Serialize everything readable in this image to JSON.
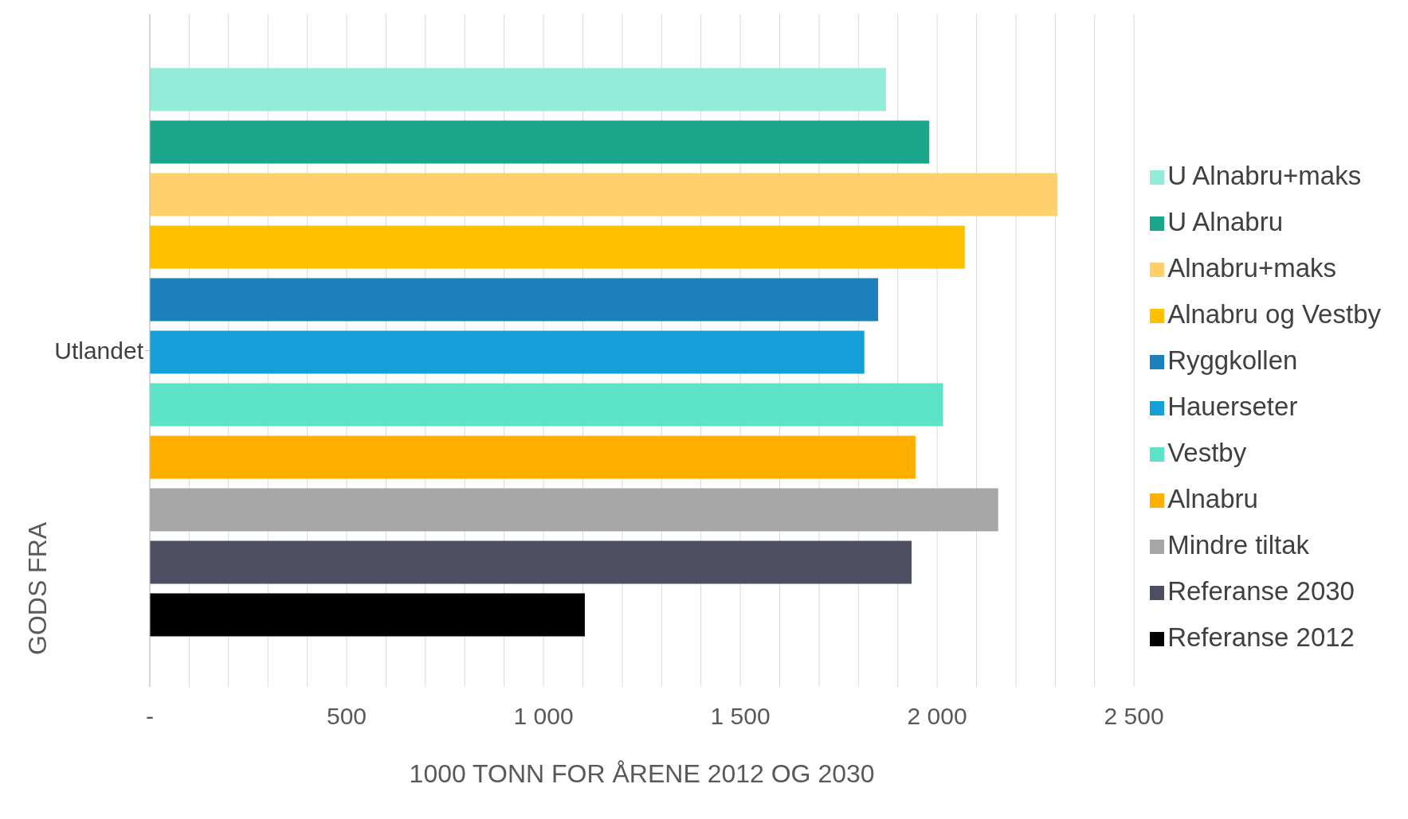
{
  "chart_data": {
    "type": "bar",
    "orientation": "horizontal",
    "xlabel": "1000 TONN FOR ÅRENE 2012 OG 2030",
    "ylabel": "GODS FRA",
    "categories": [
      "Utlandet"
    ],
    "series": [
      {
        "name": "U Alnabru+maks",
        "color": "#93ebd9",
        "values": [
          1870
        ]
      },
      {
        "name": "U Alnabru",
        "color": "#1aa68a",
        "values": [
          1980
        ]
      },
      {
        "name": "Alnabru+maks",
        "color": "#ffd06b",
        "values": [
          2305
        ]
      },
      {
        "name": "Alnabru og Vestby",
        "color": "#ffc000",
        "values": [
          2070
        ]
      },
      {
        "name": "Ryggkollen",
        "color": "#1c81bb",
        "values": [
          1850
        ]
      },
      {
        "name": "Hauerseter",
        "color": "#149fd9",
        "values": [
          1815
        ]
      },
      {
        "name": "Vestby",
        "color": "#5ce3c8",
        "values": [
          2015
        ]
      },
      {
        "name": "Alnabru",
        "color": "#ffaf00",
        "values": [
          1945
        ]
      },
      {
        "name": "Mindre tiltak",
        "color": "#a6a6a6",
        "values": [
          2155
        ]
      },
      {
        "name": "Referanse 2030",
        "color": "#4e4e63",
        "values": [
          1935
        ]
      },
      {
        "name": "Referanse 2012",
        "color": "#000000",
        "values": [
          1105
        ]
      }
    ],
    "xlim": [
      0,
      2500
    ],
    "xticks": [
      {
        "value": 0,
        "label": "-"
      },
      {
        "value": 100,
        "label": null
      },
      {
        "value": 200,
        "label": null
      },
      {
        "value": 300,
        "label": null
      },
      {
        "value": 400,
        "label": null
      },
      500,
      {
        "value": 600,
        "label": null
      },
      {
        "value": 700,
        "label": null
      },
      {
        "value": 800,
        "label": null
      },
      {
        "value": 900,
        "label": null
      },
      {
        "value": 1000,
        "label": "1 000"
      },
      {
        "value": 1100,
        "label": null
      },
      {
        "value": 1200,
        "label": null
      },
      {
        "value": 1300,
        "label": null
      },
      {
        "value": 1400,
        "label": null
      },
      {
        "value": 1500,
        "label": "1 500"
      },
      {
        "value": 1600,
        "label": null
      },
      {
        "value": 1700,
        "label": null
      },
      {
        "value": 1800,
        "label": null
      },
      {
        "value": 1900,
        "label": null
      },
      {
        "value": 2000,
        "label": "2 000"
      },
      {
        "value": 2100,
        "label": null
      },
      {
        "value": 2200,
        "label": null
      },
      {
        "value": 2300,
        "label": null
      },
      {
        "value": 2400,
        "label": null
      },
      {
        "value": 2500,
        "label": "2 500"
      }
    ],
    "grid": "x",
    "legend": "right"
  }
}
